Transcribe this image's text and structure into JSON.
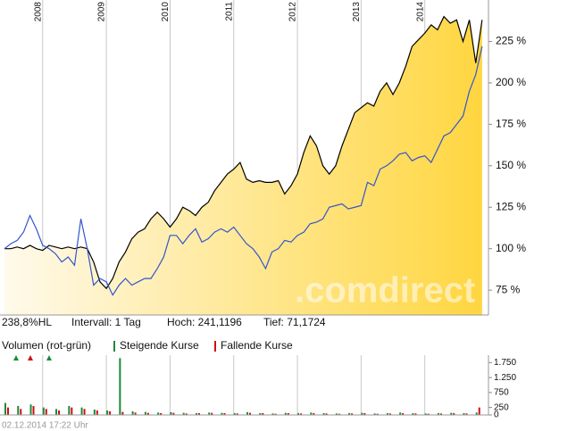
{
  "chart_data": [
    {
      "type": "line",
      "watermark": ".comdirect",
      "annotations": [
        "238,8%HL",
        "Intervall: 1 Tag",
        "Hoch: 241,1196",
        "Tief: 71,1724"
      ],
      "x": [
        2007.4,
        2007.5,
        2007.6,
        2007.7,
        2007.8,
        2007.9,
        2008.0,
        2008.1,
        2008.2,
        2008.3,
        2008.4,
        2008.5,
        2008.6,
        2008.7,
        2008.8,
        2008.9,
        2009.0,
        2009.1,
        2009.2,
        2009.3,
        2009.4,
        2009.5,
        2009.6,
        2009.7,
        2009.8,
        2009.9,
        2010.0,
        2010.1,
        2010.2,
        2010.3,
        2010.4,
        2010.5,
        2010.6,
        2010.7,
        2010.8,
        2010.9,
        2011.0,
        2011.1,
        2011.2,
        2011.3,
        2011.4,
        2011.5,
        2011.6,
        2011.7,
        2011.8,
        2011.9,
        2012.0,
        2012.1,
        2012.2,
        2012.3,
        2012.4,
        2012.5,
        2012.6,
        2012.7,
        2012.8,
        2012.9,
        2013.0,
        2013.1,
        2013.2,
        2013.3,
        2013.4,
        2013.5,
        2013.6,
        2013.7,
        2013.8,
        2013.9,
        2014.0,
        2014.1,
        2014.2,
        2014.3,
        2014.4,
        2014.5,
        2014.6,
        2014.7,
        2014.8,
        2014.9
      ],
      "series": [
        {
          "color": "#000000",
          "area": true,
          "area_colors": [
            "#fffaeb",
            "#ffd640"
          ],
          "values": [
            100,
            100,
            101,
            100,
            102,
            100,
            99,
            102,
            101,
            100,
            101,
            100,
            101,
            100,
            92,
            80,
            76,
            82,
            92,
            98,
            106,
            110,
            112,
            118,
            122,
            118,
            113,
            118,
            125,
            123,
            120,
            125,
            128,
            135,
            140,
            145,
            148,
            152,
            142,
            140,
            141,
            140,
            140,
            141,
            133,
            138,
            145,
            158,
            168,
            162,
            150,
            145,
            150,
            162,
            172,
            182,
            185,
            188,
            186,
            195,
            200,
            193,
            200,
            210,
            222,
            226,
            230,
            235,
            232,
            240,
            236,
            238,
            225,
            238,
            212,
            238
          ]
        },
        {
          "color": "#3355cc",
          "values": [
            100,
            103,
            105,
            110,
            120,
            112,
            102,
            100,
            97,
            92,
            95,
            90,
            118,
            100,
            78,
            82,
            80,
            72,
            78,
            82,
            78,
            80,
            82,
            82,
            88,
            95,
            108,
            108,
            103,
            108,
            112,
            104,
            106,
            110,
            112,
            110,
            113,
            108,
            103,
            100,
            95,
            88,
            98,
            100,
            105,
            104,
            108,
            110,
            115,
            116,
            118,
            125,
            126,
            127,
            124,
            125,
            126,
            140,
            138,
            148,
            150,
            153,
            157,
            158,
            153,
            155,
            156,
            152,
            160,
            168,
            170,
            175,
            180,
            195,
            205,
            222
          ]
        }
      ],
      "xlim": [
        2007.33,
        2015.0
      ],
      "xticks": [
        2008,
        2009,
        2010,
        2011,
        2012,
        2013,
        2014
      ],
      "ylim": [
        60,
        250
      ],
      "yticks": [
        {
          "value": 225,
          "label": "225 %"
        },
        {
          "value": 200,
          "label": "200 %"
        },
        {
          "value": 175,
          "label": "175 %"
        },
        {
          "value": 150,
          "label": "150 %"
        },
        {
          "value": 125,
          "label": "125 %"
        },
        {
          "value": 100,
          "label": "100 %"
        },
        {
          "value": 75,
          "label": "75 %"
        }
      ],
      "grid": true
    },
    {
      "type": "bar",
      "title": "Volumen (rot-grün)",
      "x": [
        2007.4,
        2007.6,
        2007.8,
        2008.0,
        2008.2,
        2008.4,
        2008.6,
        2008.8,
        2009.0,
        2009.2,
        2009.4,
        2009.6,
        2009.8,
        2010.0,
        2010.2,
        2010.4,
        2010.6,
        2010.8,
        2011.0,
        2011.2,
        2011.4,
        2011.6,
        2011.8,
        2012.0,
        2012.2,
        2012.4,
        2012.6,
        2012.8,
        2013.0,
        2013.2,
        2013.4,
        2013.6,
        2013.8,
        2014.0,
        2014.2,
        2014.4,
        2014.6,
        2014.8
      ],
      "series": [
        {
          "name": "Steigende Kurse",
          "color": "#1a8a3a",
          "values": [
            400,
            300,
            350,
            250,
            200,
            300,
            250,
            180,
            150,
            1900,
            120,
            100,
            80,
            90,
            70,
            60,
            80,
            70,
            60,
            90,
            60,
            50,
            70,
            60,
            80,
            60,
            50,
            60,
            70,
            50,
            60,
            80,
            60,
            50,
            60,
            70,
            60,
            80
          ]
        },
        {
          "name": "Fallende Kurse",
          "color": "#cc1111",
          "values": [
            250,
            200,
            300,
            200,
            150,
            250,
            200,
            150,
            120,
            100,
            80,
            70,
            60,
            70,
            50,
            60,
            70,
            60,
            50,
            70,
            60,
            40,
            60,
            50,
            60,
            50,
            40,
            50,
            60,
            40,
            50,
            60,
            50,
            40,
            50,
            60,
            50,
            250
          ]
        }
      ],
      "xlim": [
        2007.33,
        2015.0
      ],
      "xticks": [
        2008,
        2009,
        2010,
        2011,
        2012,
        2013,
        2014
      ],
      "ylim": [
        0,
        2000
      ],
      "yticks": [
        {
          "value": 1750,
          "label": "1.750"
        },
        {
          "value": 1250,
          "label": "1.250"
        },
        750,
        250,
        0
      ],
      "grid": true
    }
  ],
  "timestamp": "02.12.2014 17:22 Uhr"
}
